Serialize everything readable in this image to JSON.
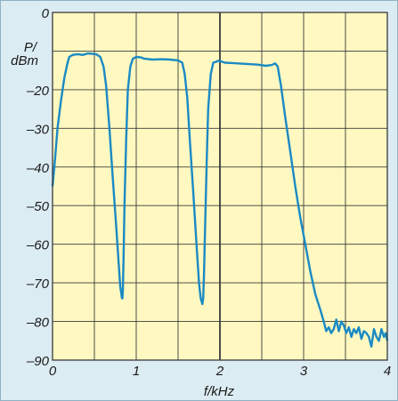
{
  "chart_data": {
    "type": "line",
    "xlabel": "f/kHz",
    "ylabel_line1": "P/",
    "ylabel_line2": "dBm",
    "xlim": [
      0,
      4
    ],
    "ylim": [
      -90,
      0
    ],
    "x_ticks": [
      "0",
      "1",
      "2",
      "3",
      "4"
    ],
    "y_ticks": [
      "0",
      "–20",
      "–30",
      "–40",
      "–50",
      "–60",
      "–70",
      "–80",
      "–90"
    ],
    "y_tick_values": [
      0,
      -20,
      -30,
      -40,
      -50,
      -60,
      -70,
      -80,
      -90
    ],
    "grid": true,
    "background_color": "#fff8c0",
    "grid_color": "#3a3a3a",
    "line_color": "#1a8ac4",
    "series": [
      {
        "x": [
          0.0,
          0.03,
          0.06,
          0.1,
          0.14,
          0.18,
          0.2,
          0.24,
          0.3,
          0.36,
          0.42,
          0.47,
          0.52,
          0.57,
          0.61,
          0.64,
          0.68,
          0.72,
          0.76,
          0.79,
          0.81,
          0.83,
          0.835,
          0.84,
          0.85,
          0.86,
          0.88,
          0.9,
          0.93,
          0.96,
          1.0,
          1.05,
          1.1,
          1.2,
          1.3,
          1.4,
          1.5,
          1.55,
          1.58,
          1.61,
          1.64,
          1.68,
          1.72,
          1.75,
          1.77,
          1.79,
          1.8,
          1.81,
          1.82,
          1.84,
          1.86,
          1.89,
          1.92,
          1.95,
          1.98,
          2.02,
          2.06,
          2.15,
          2.3,
          2.45,
          2.55,
          2.62,
          2.66,
          2.69,
          2.73,
          2.78,
          2.84,
          2.9,
          2.96,
          3.02,
          3.08,
          3.14,
          3.2,
          3.24,
          3.27,
          3.3,
          3.33,
          3.36,
          3.39,
          3.42,
          3.45,
          3.48,
          3.51,
          3.54,
          3.57,
          3.6,
          3.63,
          3.66,
          3.69,
          3.72,
          3.75,
          3.78,
          3.81,
          3.84,
          3.87,
          3.9,
          3.93,
          3.96,
          3.98,
          4.0
        ],
        "y": [
          -45,
          -38,
          -30,
          -23,
          -17,
          -13,
          -11.5,
          -11,
          -10.8,
          -11,
          -10.6,
          -10.7,
          -10.8,
          -11.5,
          -14,
          -19,
          -30,
          -43,
          -55,
          -65,
          -71,
          -74,
          -74,
          -72,
          -62,
          -50,
          -33,
          -20,
          -14,
          -12,
          -11.5,
          -11.6,
          -12,
          -12.2,
          -12.1,
          -12.2,
          -12.4,
          -13,
          -16,
          -22,
          -33,
          -46,
          -60,
          -70,
          -74,
          -75.5,
          -74,
          -68,
          -58,
          -40,
          -25,
          -16,
          -13,
          -12.8,
          -12.5,
          -12.7,
          -13,
          -13.1,
          -13.3,
          -13.5,
          -13.8,
          -13.6,
          -13.2,
          -14,
          -19,
          -27,
          -36,
          -45,
          -53,
          -60,
          -67,
          -73,
          -77,
          -80,
          -82.5,
          -81.5,
          -83,
          -82,
          -79.5,
          -82.5,
          -80,
          -81,
          -83,
          -81.5,
          -84,
          -82,
          -83,
          -81.5,
          -84.5,
          -82.5,
          -83,
          -84,
          -86.5,
          -82,
          -84,
          -85,
          -82,
          -84,
          -83,
          -85
        ]
      }
    ]
  }
}
